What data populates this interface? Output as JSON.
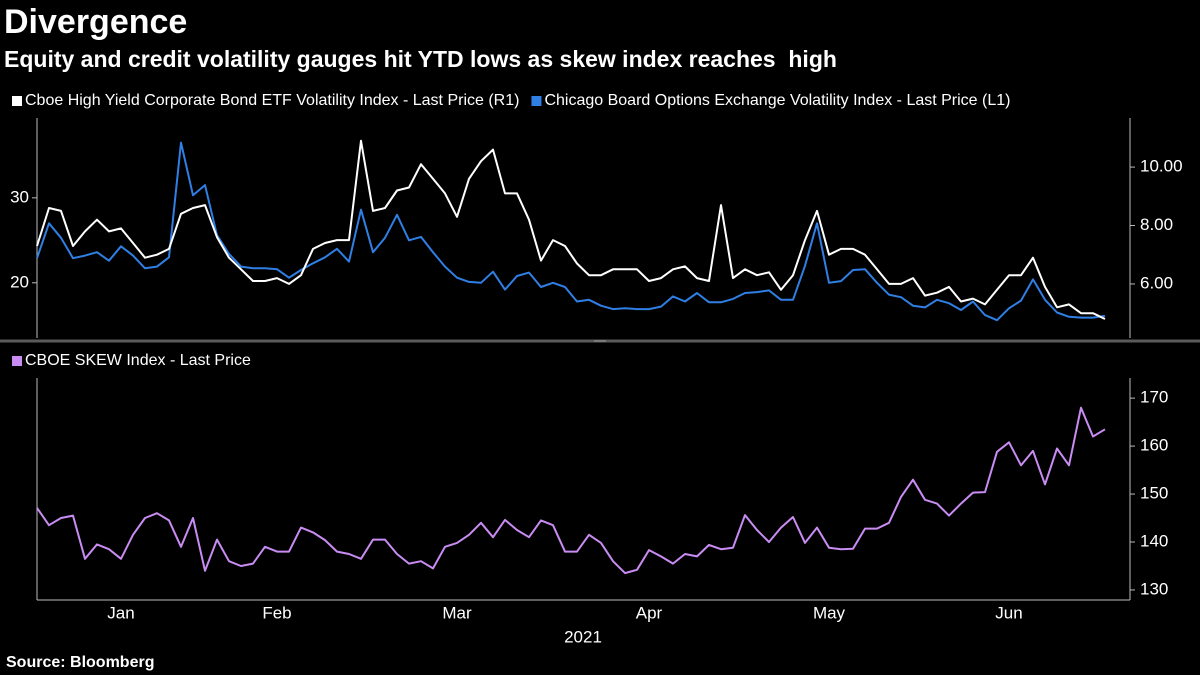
{
  "chart_data": [
    {
      "type": "line",
      "title": "Divergence",
      "subtitle": "Equity and credit volatility gauges hit YTD lows as skew index reaches  high",
      "ylim": [
        13.5,
        39.4
      ],
      "yticks": [
        20,
        30
      ],
      "y2lim": [
        4.15,
        11.68
      ],
      "y2ticks": [
        {
          "value": 6,
          "label": "6.00"
        },
        {
          "value": 8,
          "label": "8.00"
        },
        {
          "value": 10,
          "label": "10.00"
        }
      ],
      "series": [
        {
          "name": "Cboe High Yield Corporate Bond ETF Volatility Index - Last Price (R1)",
          "color": "#ffffff",
          "axis": "y2",
          "values": [
            7.3,
            8.6,
            8.5,
            7.3,
            7.8,
            8.2,
            7.8,
            7.9,
            7.4,
            6.9,
            7.0,
            7.2,
            8.4,
            8.6,
            8.7,
            7.6,
            6.9,
            6.5,
            6.1,
            6.1,
            6.2,
            6.0,
            6.3,
            7.2,
            7.4,
            7.5,
            7.5,
            10.9,
            8.5,
            8.6,
            9.2,
            9.3,
            10.1,
            9.6,
            9.1,
            8.3,
            9.6,
            10.2,
            10.6,
            9.1,
            9.1,
            8.2,
            6.8,
            7.5,
            7.3,
            6.7,
            6.3,
            6.3,
            6.5,
            6.5,
            6.5,
            6.1,
            6.2,
            6.5,
            6.6,
            6.2,
            6.1,
            8.7,
            6.2,
            6.5,
            6.3,
            6.4,
            5.8,
            6.3,
            7.5,
            8.5,
            7.0,
            7.2,
            7.2,
            7.0,
            6.5,
            6.0,
            6.0,
            6.2,
            5.6,
            5.7,
            5.9,
            5.4,
            5.5,
            5.3,
            5.8,
            6.3,
            6.3,
            6.9,
            5.9,
            5.2,
            5.3,
            5.0,
            5.0,
            4.8
          ]
        },
        {
          "name": "Chicago Board Options Exchange Volatility Index - Last Price (L1)",
          "color": "#2f7fe4",
          "values": [
            22.9,
            27.0,
            25.3,
            22.9,
            23.2,
            23.6,
            22.6,
            24.3,
            23.2,
            21.7,
            21.9,
            23.0,
            36.5,
            30.3,
            31.5,
            25.6,
            23.4,
            21.9,
            21.7,
            21.7,
            21.6,
            20.6,
            21.5,
            22.3,
            23.0,
            24.0,
            22.5,
            28.6,
            23.6,
            25.3,
            28.0,
            25.0,
            25.4,
            23.6,
            21.9,
            20.6,
            20.1,
            20.0,
            21.3,
            19.2,
            20.8,
            21.2,
            19.5,
            20.0,
            19.5,
            17.8,
            18.0,
            17.3,
            16.9,
            17.0,
            16.9,
            16.9,
            17.2,
            18.4,
            17.8,
            18.8,
            17.7,
            17.7,
            18.1,
            18.8,
            18.9,
            19.1,
            18.0,
            18.0,
            22.0,
            27.0,
            20.0,
            20.2,
            21.5,
            21.6,
            20.0,
            18.6,
            18.3,
            17.3,
            17.1,
            18.0,
            17.6,
            16.8,
            17.8,
            16.2,
            15.6,
            17.0,
            17.9,
            20.4,
            18.0,
            16.5,
            16.0,
            15.9,
            15.9,
            16.1
          ]
        }
      ]
    },
    {
      "type": "line",
      "x_label": "2021",
      "categories": [
        null,
        null,
        null,
        null,
        null,
        null,
        null,
        "Jan",
        null,
        null,
        null,
        null,
        null,
        null,
        null,
        null,
        null,
        null,
        null,
        null,
        "Feb",
        null,
        null,
        null,
        null,
        null,
        null,
        null,
        null,
        null,
        null,
        null,
        null,
        null,
        null,
        "Mar",
        null,
        null,
        null,
        null,
        null,
        null,
        null,
        null,
        null,
        null,
        null,
        null,
        null,
        null,
        null,
        "Apr",
        null,
        null,
        null,
        null,
        null,
        null,
        null,
        null,
        null,
        null,
        null,
        null,
        null,
        null,
        "May",
        null,
        null,
        null,
        null,
        null,
        null,
        null,
        null,
        null,
        null,
        null,
        null,
        null,
        null,
        "Jun",
        null,
        null,
        null,
        null,
        null,
        null,
        null,
        null
      ],
      "y2lim": [
        127.9,
        174.2
      ],
      "y2ticks": [
        130,
        140,
        150,
        160,
        170
      ],
      "series": [
        {
          "name": "CBOE SKEW Index - Last Price",
          "color": "#c98cf3",
          "axis": "y2",
          "values": [
            147.1,
            143.5,
            145.0,
            145.5,
            136.5,
            139.5,
            138.5,
            136.5,
            141.5,
            145.0,
            146.0,
            144.5,
            139.0,
            145.0,
            134.0,
            140.5,
            136.0,
            135.0,
            135.5,
            139.0,
            138.0,
            138.0,
            143.0,
            142.0,
            140.4,
            138.0,
            137.5,
            136.5,
            140.5,
            140.5,
            137.5,
            135.5,
            136.0,
            134.5,
            139.0,
            139.8,
            141.5,
            144.0,
            141.0,
            144.6,
            142.5,
            141.0,
            144.5,
            143.5,
            138.0,
            138.0,
            141.5,
            139.8,
            136.0,
            133.5,
            134.2,
            138.3,
            137.0,
            135.5,
            137.5,
            137.0,
            139.4,
            138.5,
            138.8,
            145.6,
            142.5,
            140.0,
            143.0,
            145.2,
            139.8,
            143.0,
            138.8,
            138.5,
            138.6,
            142.8,
            142.8,
            144.0,
            149.4,
            153.0,
            148.8,
            148.0,
            145.5,
            148.0,
            150.3,
            150.4,
            158.8,
            160.8,
            156.0,
            159.0,
            152.0,
            159.5,
            156.0,
            168.0,
            162.0,
            163.5
          ]
        }
      ]
    }
  ],
  "source": "Source: Bloomberg"
}
